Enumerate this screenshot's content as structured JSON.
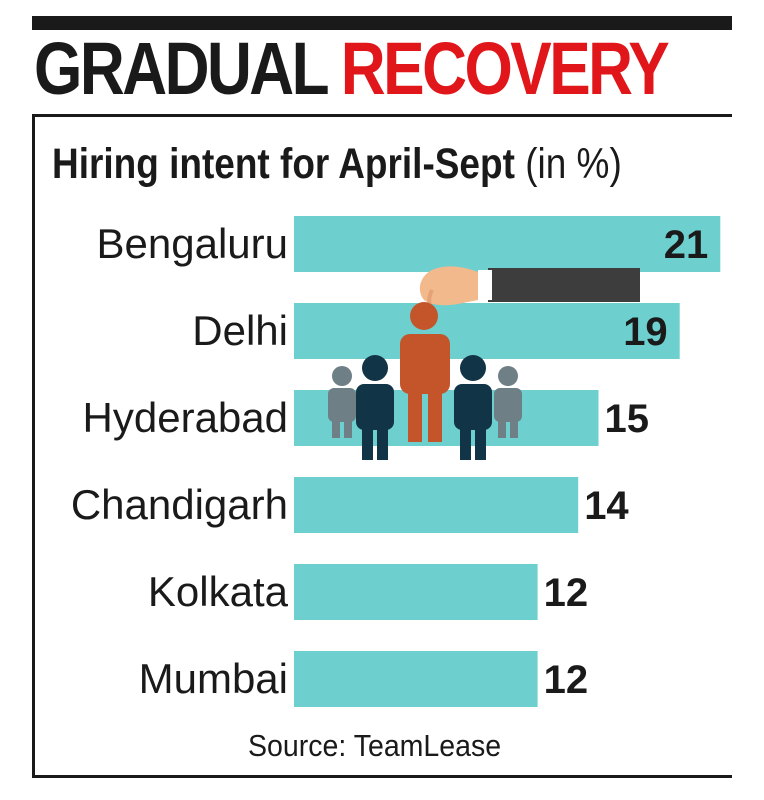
{
  "header": {
    "title_part1": "GRADUAL",
    "title_part2": "RECOVERY"
  },
  "chart_data": {
    "type": "bar",
    "orientation": "horizontal",
    "title": "Hiring intent for April-Sept",
    "unit_label": "(in %)",
    "categories": [
      "Bengaluru",
      "Delhi",
      "Hyderabad",
      "Chandigarh",
      "Kolkata",
      "Mumbai"
    ],
    "values": [
      21,
      19,
      15,
      14,
      12,
      12
    ],
    "source": "Source: TeamLease",
    "bar_color": "#6ecfcf",
    "title_color": "#e0161b",
    "illustration": "hand-picking-person-icon"
  }
}
